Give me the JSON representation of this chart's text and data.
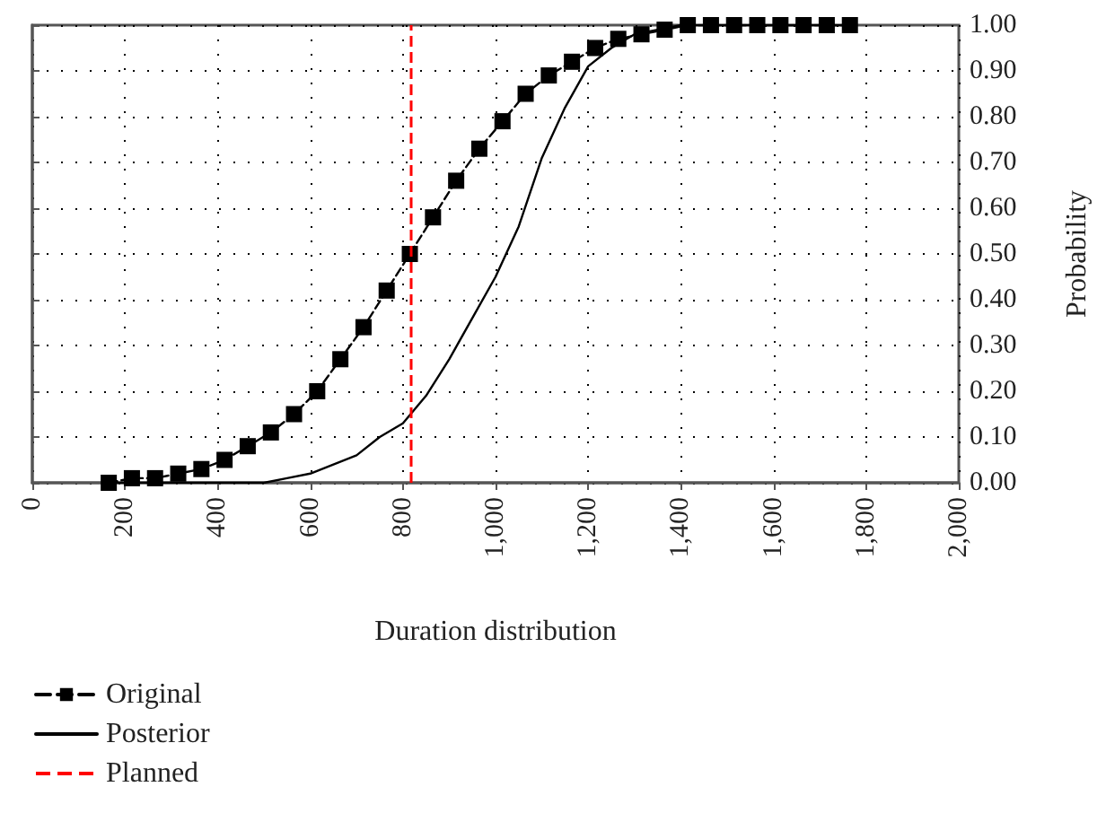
{
  "chart_data": {
    "type": "line",
    "xlabel": "Duration distribution",
    "ylabel": "Probability",
    "xlim": [
      0,
      2000
    ],
    "xticks": [
      0,
      200,
      400,
      600,
      800,
      {
        "value": 1000,
        "label": "1,000"
      },
      {
        "value": 1200,
        "label": "1,200"
      },
      {
        "value": 1400,
        "label": "1,400"
      },
      {
        "value": 1600,
        "label": "1,600"
      },
      {
        "value": 1800,
        "label": "1,800"
      },
      {
        "value": 2000,
        "label": "2,000"
      }
    ],
    "ylim": [
      0,
      1
    ],
    "yticks": [
      {
        "value": 0,
        "label": "0.00"
      },
      {
        "value": 0.1,
        "label": "0.10"
      },
      {
        "value": 0.2,
        "label": "0.20"
      },
      {
        "value": 0.3,
        "label": "0.30"
      },
      {
        "value": 0.4,
        "label": "0.40"
      },
      {
        "value": 0.5,
        "label": "0.50"
      },
      {
        "value": 0.6,
        "label": "0.60"
      },
      {
        "value": 0.7,
        "label": "0.70"
      },
      {
        "value": 0.8,
        "label": "0.80"
      },
      {
        "value": 0.9,
        "label": "0.90"
      },
      {
        "value": 1,
        "label": "1.00"
      }
    ],
    "grid": true,
    "legend": "bottom left",
    "series": [
      {
        "name": "Original",
        "color": "#000000",
        "marker": "square",
        "line_style": "dashed",
        "x": [
          165,
          215,
          265,
          315,
          365,
          415,
          465,
          515,
          565,
          615,
          665,
          715,
          765,
          815,
          865,
          915,
          965,
          1015,
          1065,
          1115,
          1165,
          1215,
          1265,
          1315,
          1365,
          1415,
          1465,
          1515,
          1565,
          1615,
          1665,
          1715,
          1765
        ],
        "values": [
          0.0,
          0.01,
          0.01,
          0.02,
          0.03,
          0.05,
          0.08,
          0.11,
          0.15,
          0.2,
          0.27,
          0.34,
          0.42,
          0.5,
          0.58,
          0.66,
          0.73,
          0.79,
          0.85,
          0.89,
          0.92,
          0.95,
          0.97,
          0.98,
          0.99,
          1,
          1,
          1,
          1,
          1,
          1,
          1,
          1
        ]
      },
      {
        "name": "Posterior",
        "color": "#000000",
        "marker": "none",
        "line_style": "solid",
        "x": [
          165,
          300,
          400,
          500,
          550,
          600,
          650,
          700,
          750,
          800,
          850,
          900,
          950,
          1000,
          1050,
          1100,
          1150,
          1200,
          1250,
          1300,
          1350,
          1400,
          1450,
          1600,
          1765
        ],
        "values": [
          0,
          0,
          0,
          0,
          0.01,
          0.02,
          0.04,
          0.06,
          0.1,
          0.13,
          0.19,
          0.27,
          0.36,
          0.45,
          0.56,
          0.71,
          0.82,
          0.91,
          0.95,
          0.98,
          0.99,
          1,
          1,
          1,
          1
        ]
      }
    ],
    "ref_lines": [
      {
        "axis": "x",
        "value": 815,
        "label": "Planned",
        "color": "#ff0000",
        "line_style": "dashed"
      }
    ]
  }
}
